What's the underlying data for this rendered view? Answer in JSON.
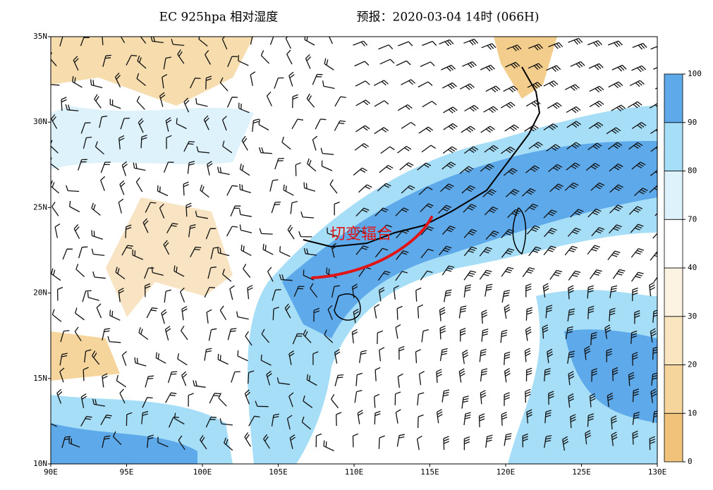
{
  "title": "EC 925hpa 相对湿度",
  "forecast": "预报：2020-03-04 14时 (066H)",
  "annotation": "切变辐合",
  "map": {
    "xlim": [
      90,
      130
    ],
    "ylim": [
      10,
      35
    ],
    "xticks": [
      {
        "value": 90,
        "label": "90E"
      },
      {
        "value": 95,
        "label": "95E"
      },
      {
        "value": 100,
        "label": "100E"
      },
      {
        "value": 105,
        "label": "105E"
      },
      {
        "value": 110,
        "label": "110E"
      },
      {
        "value": 115,
        "label": "115E"
      },
      {
        "value": 120,
        "label": "120E"
      },
      {
        "value": 125,
        "label": "125E"
      },
      {
        "value": 130,
        "label": "130E"
      }
    ],
    "yticks": [
      {
        "value": 10,
        "label": "10N"
      },
      {
        "value": 15,
        "label": "15N"
      },
      {
        "value": 20,
        "label": "20N"
      },
      {
        "value": 25,
        "label": "25N"
      },
      {
        "value": 30,
        "label": "30N"
      },
      {
        "value": 35,
        "label": "35N"
      }
    ]
  },
  "colorbar": {
    "levels": [
      0,
      10,
      20,
      30,
      40,
      70,
      80,
      90,
      100
    ],
    "colors": [
      "#f0c27a",
      "#f5d59c",
      "#f9e5c0",
      "#fdf3e2",
      "#ffffff",
      "#def2fc",
      "#a6def7",
      "#5ea9ea"
    ]
  }
}
